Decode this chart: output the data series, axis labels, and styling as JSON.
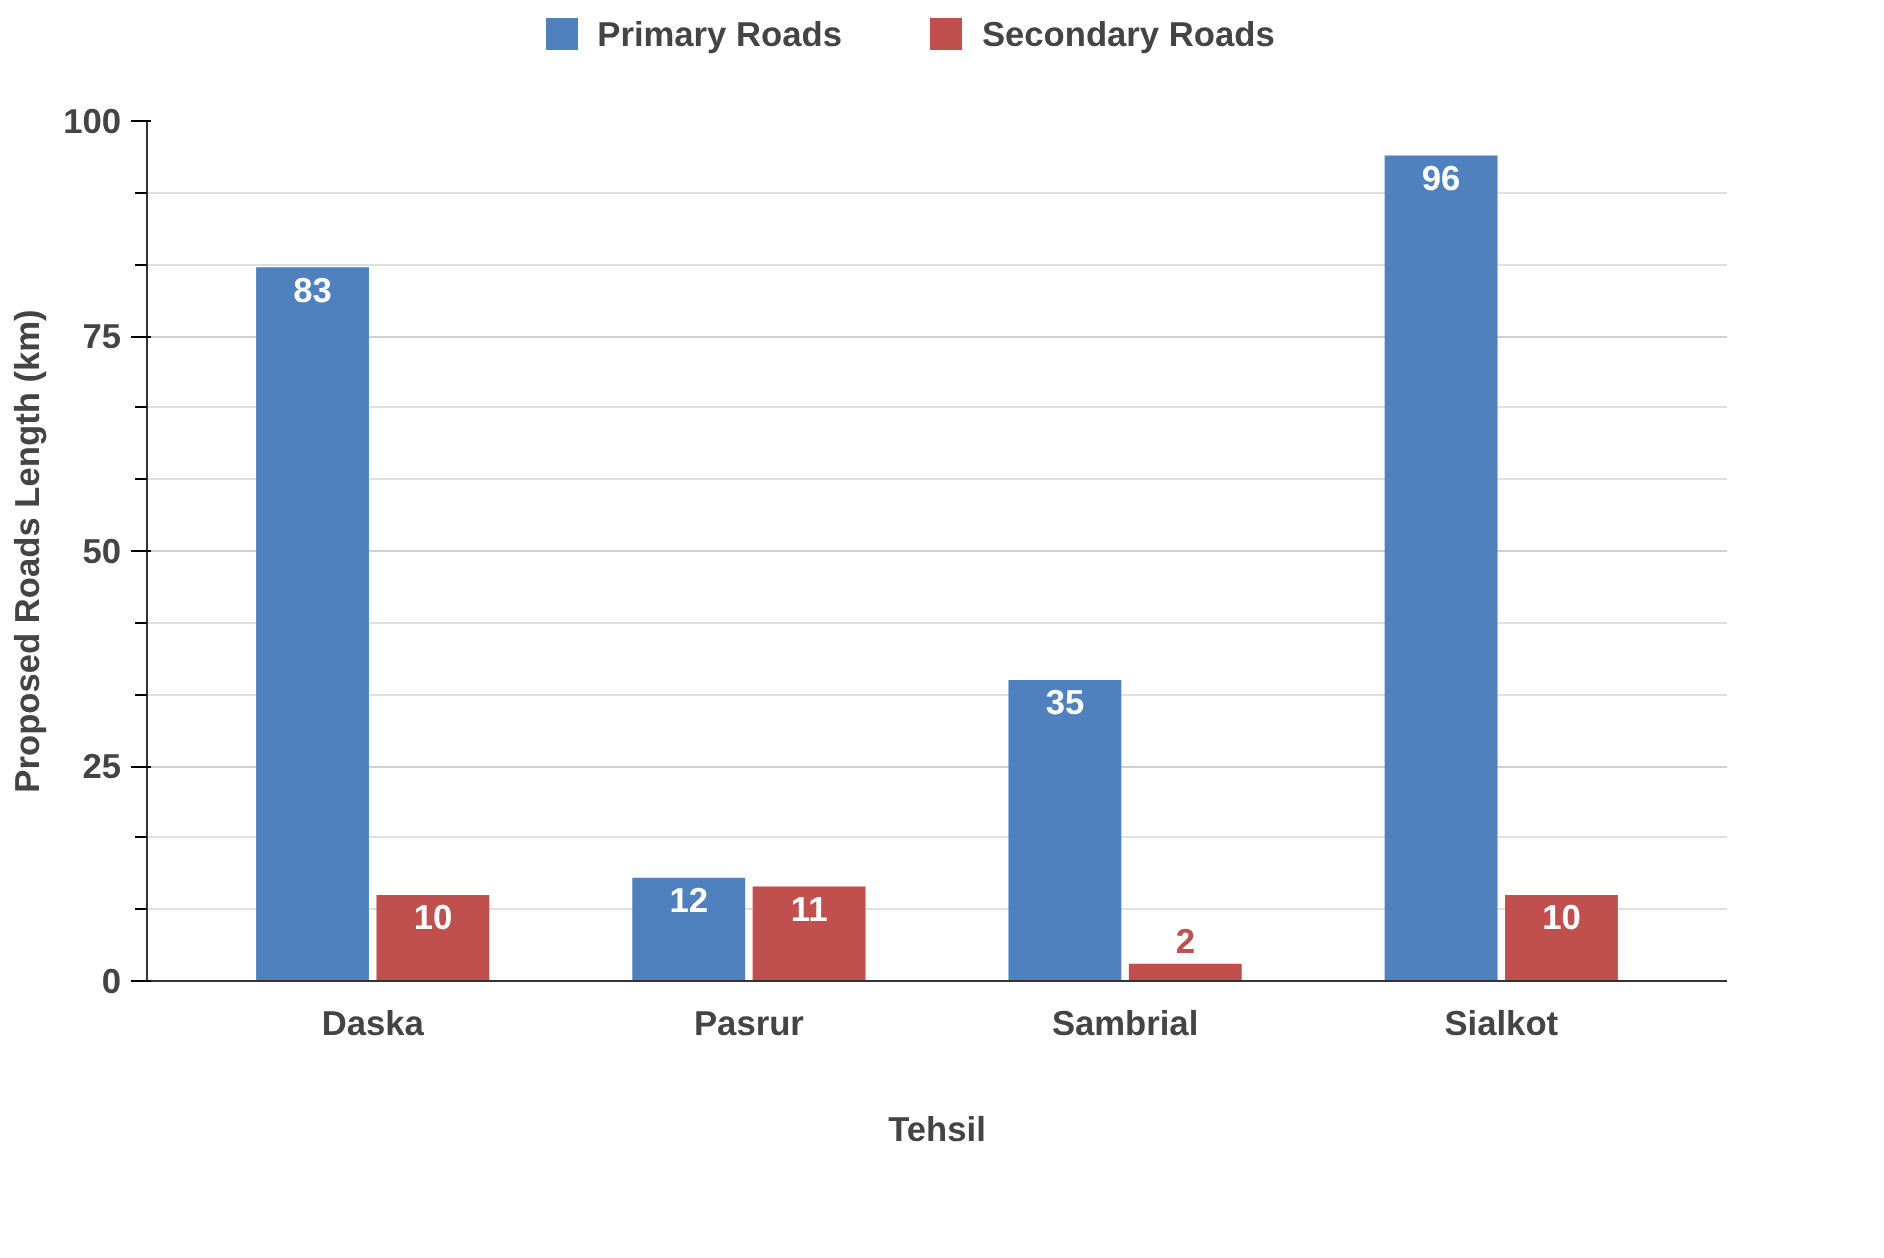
{
  "chart_data": {
    "type": "bar",
    "xlabel": "Tehsil",
    "ylabel": "Proposed Roads Length (km)",
    "categories": [
      "Daska",
      "Pasrur",
      "Sambrial",
      "Sialkot"
    ],
    "series": [
      {
        "name": "Primary Roads",
        "color": "#4e81bd",
        "values": [
          83,
          12,
          35,
          96
        ]
      },
      {
        "name": "Secondary Roads",
        "color": "#c0504d",
        "values": [
          10,
          11,
          2,
          10
        ]
      }
    ],
    "ylim": [
      0,
      100
    ],
    "yticks": [
      0,
      25,
      50,
      75,
      100
    ],
    "grid": "y",
    "legend": "top",
    "data_labels": true
  }
}
